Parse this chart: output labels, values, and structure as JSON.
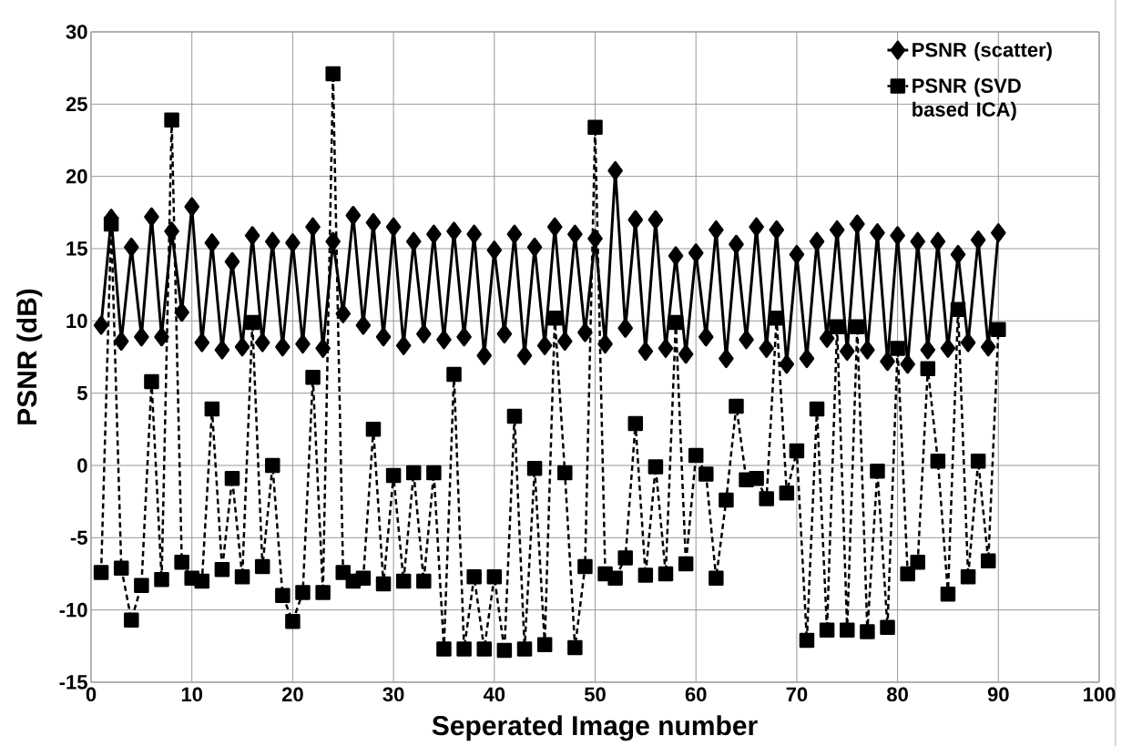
{
  "chart_data": {
    "type": "line",
    "xlabel": "Seperated Image number",
    "ylabel": "PSNR (dB)",
    "x": [
      1,
      2,
      3,
      4,
      5,
      6,
      7,
      8,
      9,
      10,
      11,
      12,
      13,
      14,
      15,
      16,
      17,
      18,
      19,
      20,
      21,
      22,
      23,
      24,
      25,
      26,
      27,
      28,
      29,
      30,
      31,
      32,
      33,
      34,
      35,
      36,
      37,
      38,
      39,
      40,
      41,
      42,
      43,
      44,
      45,
      46,
      47,
      48,
      49,
      50,
      51,
      52,
      53,
      54,
      55,
      56,
      57,
      58,
      59,
      60,
      61,
      62,
      63,
      64,
      65,
      66,
      67,
      68,
      69,
      70,
      71,
      72,
      73,
      74,
      75,
      76,
      77,
      78,
      79,
      80,
      81,
      82,
      83,
      84,
      85,
      86,
      87,
      88,
      89,
      90
    ],
    "series": [
      {
        "name": "PSNR (scatter)",
        "color": "#000000",
        "marker": "diamond",
        "line_style": "solid",
        "values": [
          9.7,
          17.1,
          8.6,
          15.1,
          8.9,
          17.2,
          8.9,
          16.2,
          10.6,
          17.9,
          8.5,
          15.4,
          8.0,
          14.1,
          8.2,
          15.9,
          8.5,
          15.5,
          8.2,
          15.4,
          8.4,
          16.5,
          8.1,
          15.5,
          10.5,
          17.3,
          9.7,
          16.8,
          8.9,
          16.5,
          8.3,
          15.5,
          9.1,
          16.0,
          8.7,
          16.2,
          8.9,
          16.0,
          7.6,
          14.9,
          9.1,
          16.0,
          7.6,
          15.1,
          8.3,
          16.5,
          8.6,
          16.0,
          9.2,
          15.7,
          8.4,
          20.4,
          9.5,
          17.0,
          7.9,
          17.0,
          8.1,
          14.5,
          7.7,
          14.7,
          8.9,
          16.3,
          7.4,
          15.3,
          8.7,
          16.5,
          8.1,
          16.3,
          7.0,
          14.6,
          7.4,
          15.5,
          8.8,
          16.3,
          7.9,
          16.7,
          8.0,
          16.1,
          7.2,
          15.9,
          7.0,
          15.5,
          8.0,
          15.5,
          8.1,
          14.6,
          8.5,
          15.6,
          8.2,
          16.1
        ]
      },
      {
        "name": "PSNR (SVD based ICA)",
        "color": "#000000",
        "marker": "square",
        "line_style": "dashed",
        "values": [
          -7.4,
          16.7,
          -7.1,
          -10.7,
          -8.3,
          5.8,
          -7.9,
          23.9,
          -6.7,
          -7.8,
          -8.0,
          3.9,
          -7.2,
          -0.9,
          -7.7,
          9.9,
          -7.0,
          0.0,
          -9.0,
          -10.8,
          -8.8,
          6.1,
          -8.8,
          27.1,
          -7.4,
          -8.0,
          -7.8,
          2.5,
          -8.2,
          -0.7,
          -8.0,
          -0.5,
          -8.0,
          -0.5,
          -12.7,
          6.3,
          -12.7,
          -7.7,
          -12.7,
          -7.7,
          -12.8,
          3.4,
          -12.7,
          -0.2,
          -12.4,
          10.2,
          -0.5,
          -12.6,
          -7.0,
          23.4,
          -7.5,
          -7.8,
          -6.4,
          2.9,
          -7.6,
          -0.1,
          -7.5,
          9.9,
          -6.8,
          0.7,
          -0.6,
          -7.8,
          -2.4,
          4.1,
          -1.0,
          -0.9,
          -2.3,
          10.2,
          -1.9,
          1.0,
          -12.1,
          3.9,
          -11.4,
          9.6,
          -11.4,
          9.6,
          -11.5,
          -0.4,
          -11.2,
          8.1,
          -7.5,
          -6.7,
          6.7,
          0.3,
          -8.9,
          10.8,
          -7.7,
          0.3,
          -6.6,
          9.4
        ]
      }
    ],
    "xlim": [
      0,
      100
    ],
    "xticks": [
      0,
      10,
      20,
      30,
      40,
      50,
      60,
      70,
      80,
      90,
      100
    ],
    "ylim": [
      -15,
      30
    ],
    "yticks": [
      -15,
      -10,
      -5,
      0,
      5,
      10,
      15,
      20,
      25,
      30
    ],
    "grid": true,
    "legend": "top right"
  }
}
